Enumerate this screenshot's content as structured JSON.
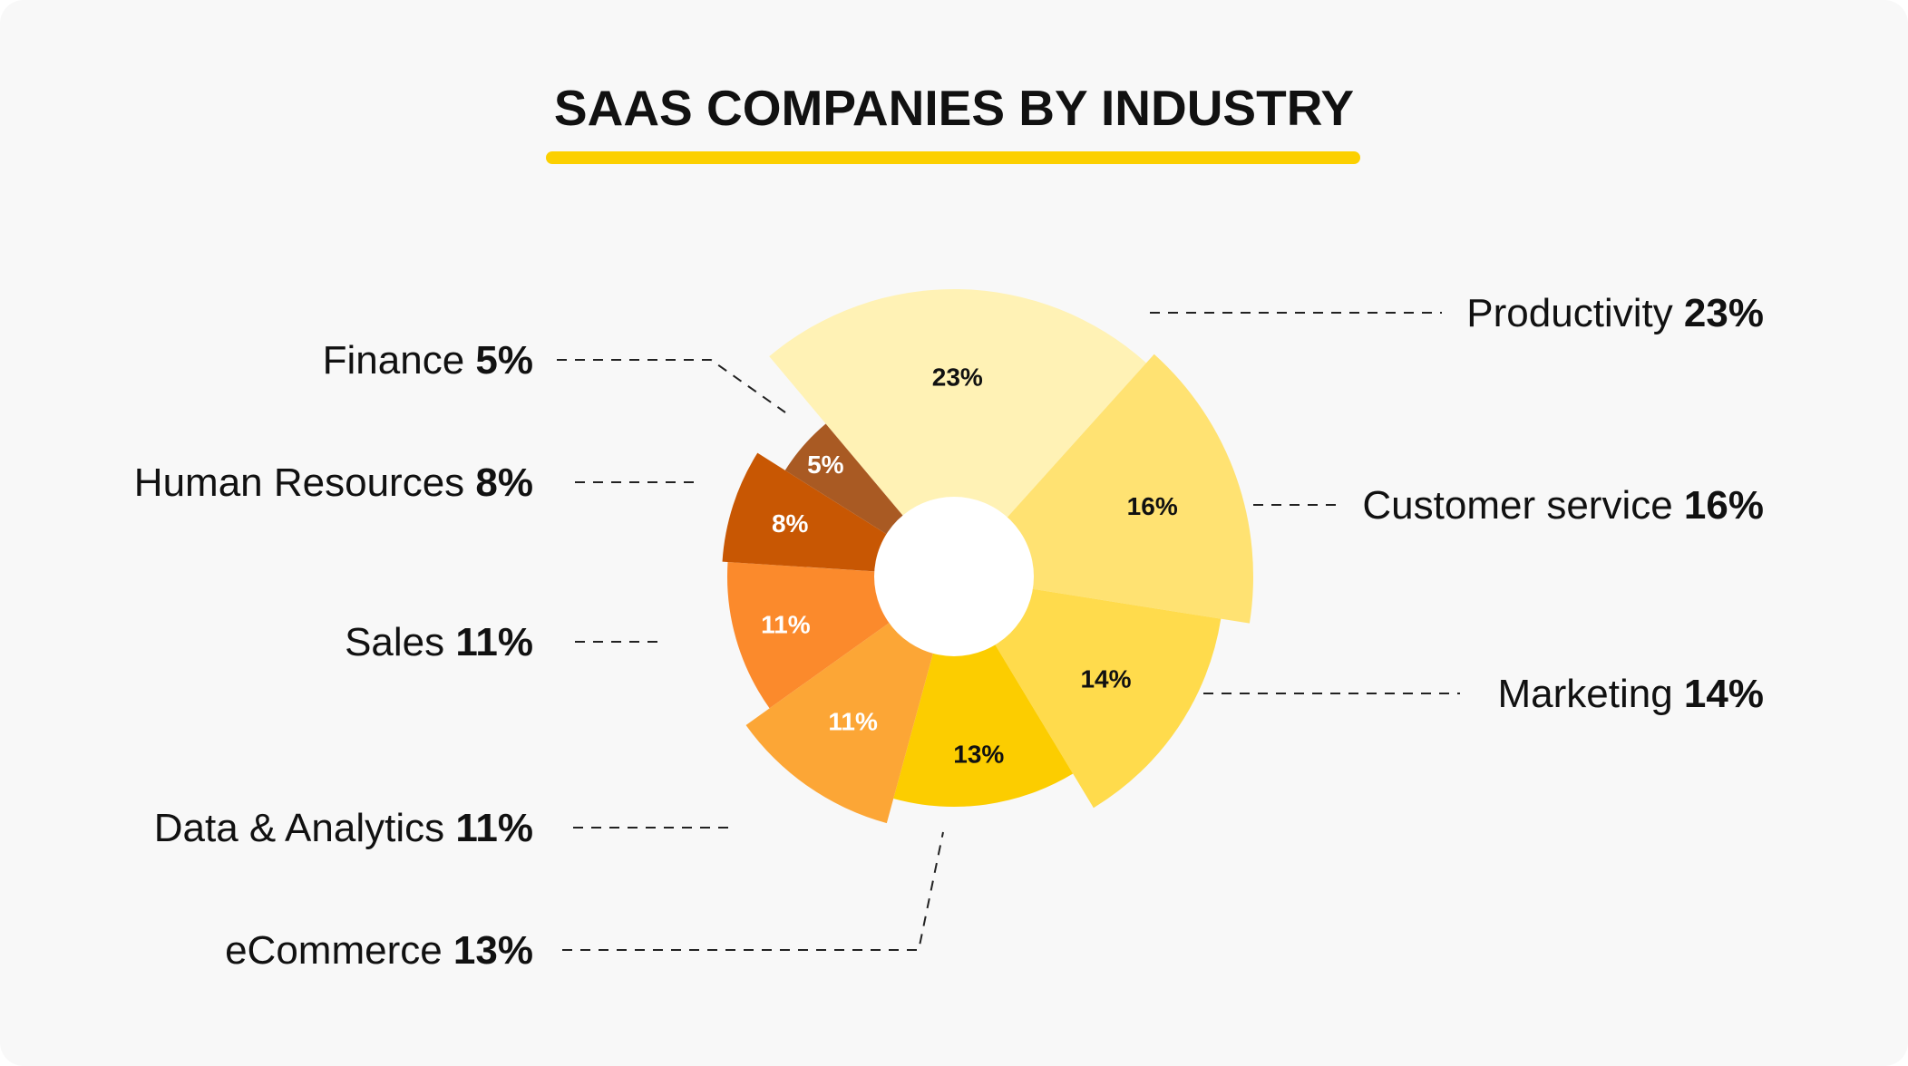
{
  "chart_data": {
    "type": "pie",
    "variant": "polar-donut",
    "title": "SAAS COMPANIES BY INDUSTRY",
    "value_suffix": "%",
    "colors": {
      "background": "#f8f8f8",
      "title_underline": "#fcd000",
      "hole": "#ffffff",
      "label_dark": "#111111",
      "label_light": "#ffffff"
    },
    "slices": [
      {
        "name": "Productivity",
        "value": 23,
        "color": "#fff2b5",
        "label_color": "dark"
      },
      {
        "name": "Customer service",
        "value": 16,
        "color": "#ffe272",
        "label_color": "dark"
      },
      {
        "name": "Marketing",
        "value": 14,
        "color": "#ffdb4c",
        "label_color": "dark"
      },
      {
        "name": "eCommerce",
        "value": 13,
        "color": "#fccd00",
        "label_color": "dark"
      },
      {
        "name": "Data & Analytics",
        "value": 11,
        "color": "#fca636",
        "label_color": "light"
      },
      {
        "name": "Sales",
        "value": 11,
        "color": "#fb8a2c",
        "label_color": "light"
      },
      {
        "name": "Human Resources",
        "value": 8,
        "color": "#c85703",
        "label_color": "light"
      },
      {
        "name": "Finance",
        "value": 5,
        "color": "#a95a23",
        "label_color": "light"
      }
    ]
  }
}
